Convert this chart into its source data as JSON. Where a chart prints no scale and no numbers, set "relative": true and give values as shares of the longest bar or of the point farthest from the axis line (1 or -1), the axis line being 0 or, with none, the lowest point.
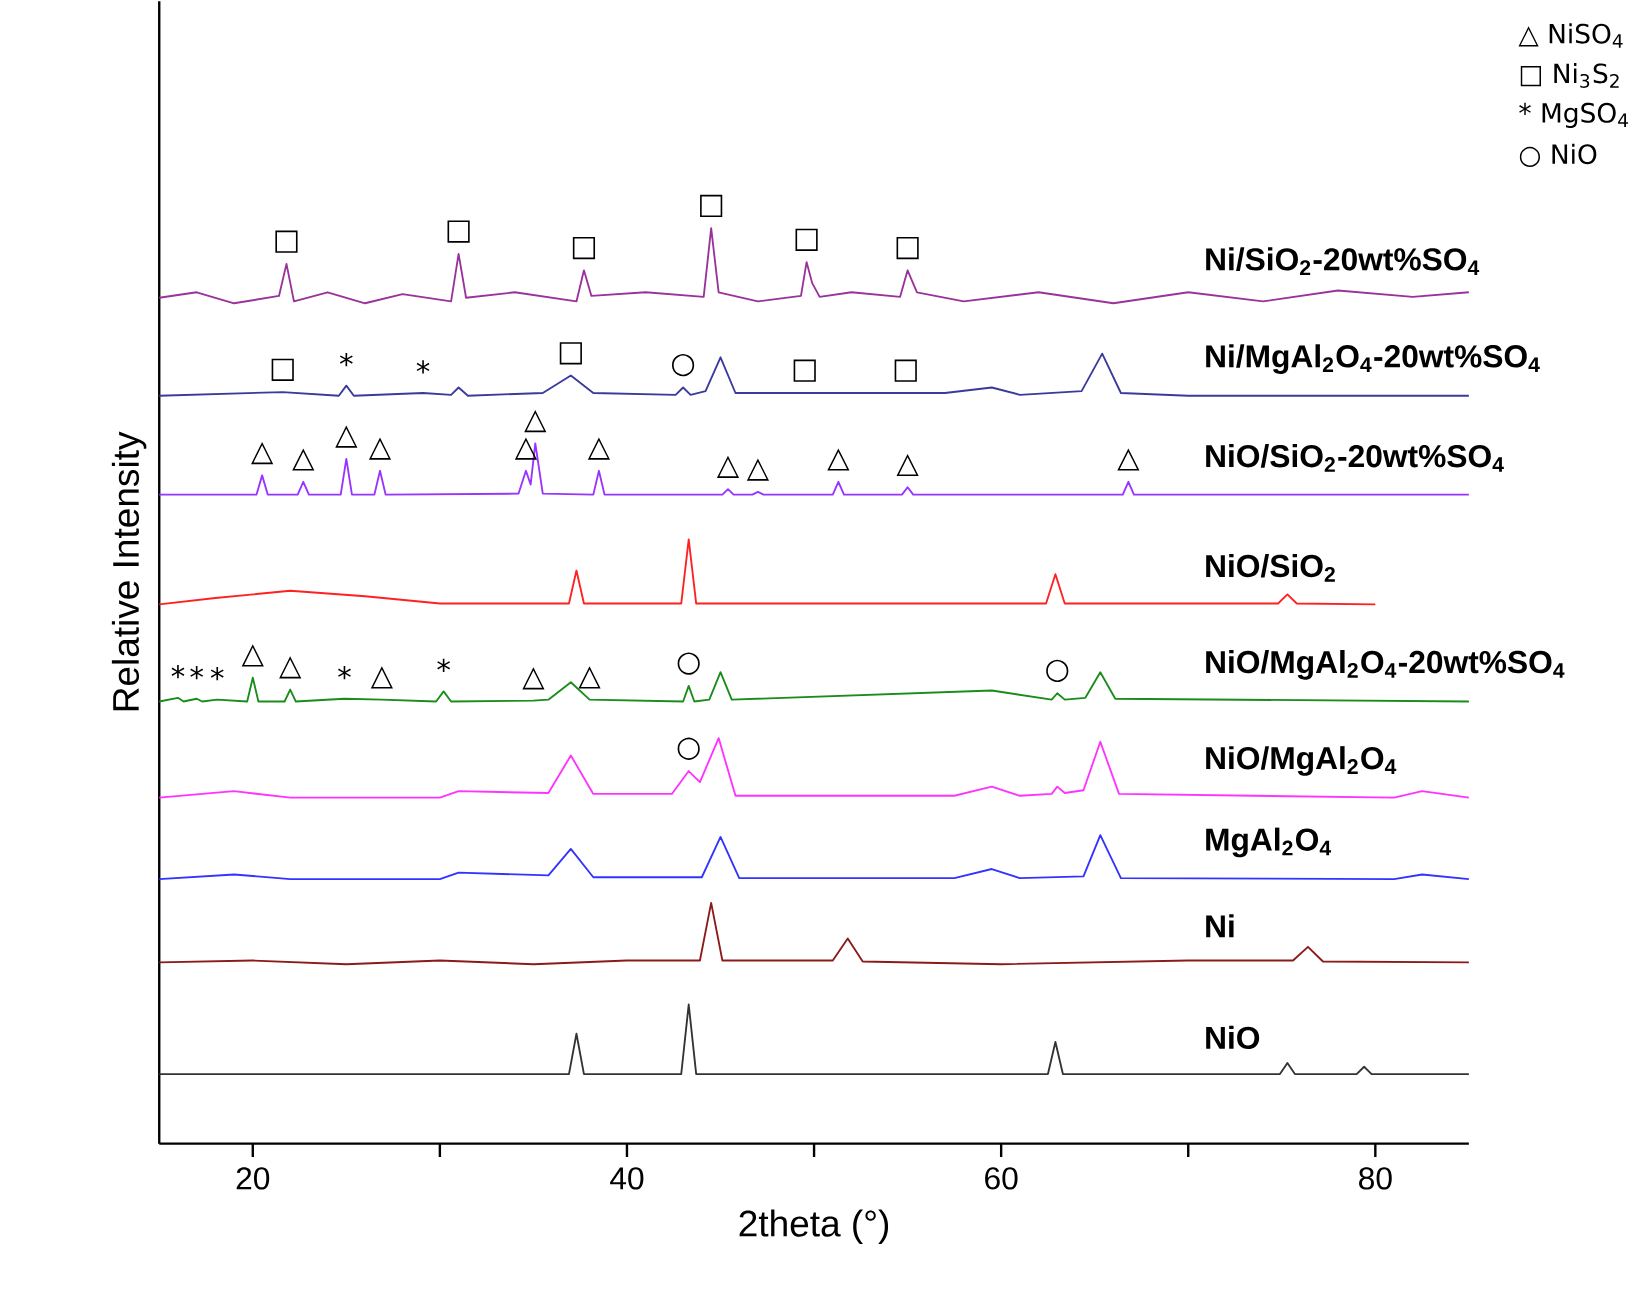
{
  "chart_data": {
    "type": "line",
    "relative": true,
    "xlabel": "2theta (°)",
    "ylabel": "Relative Intensity",
    "xlim": [
      15,
      85
    ],
    "xticks": [
      20,
      {
        "value": 30,
        "label": null
      },
      40,
      {
        "value": 50,
        "label": null
      },
      60,
      {
        "value": 70,
        "label": null
      },
      80
    ],
    "series": [
      {
        "name": "Ni/SiO$_{2}$-20wt%SO$_{4}$",
        "color": "#993399",
        "x": [
          15,
          17,
          19,
          21.4,
          21.8,
          22.2,
          24,
          26,
          28,
          30.6,
          31,
          31.4,
          34,
          37.3,
          37.7,
          38.1,
          41,
          44.1,
          44.5,
          44.9,
          47,
          49.3,
          49.6,
          49.9,
          50.3,
          52,
          54.6,
          55,
          55.5,
          58,
          62,
          66,
          70,
          74,
          78,
          82,
          85
        ],
        "values": [
          0.924,
          0.93,
          0.918,
          0.926,
          0.961,
          0.92,
          0.93,
          0.918,
          0.928,
          0.92,
          0.972,
          0.924,
          0.93,
          0.92,
          0.954,
          0.926,
          0.93,
          0.925,
          1.0,
          0.93,
          0.92,
          0.926,
          0.963,
          0.94,
          0.925,
          0.93,
          0.925,
          0.954,
          0.93,
          0.92,
          0.93,
          0.918,
          0.93,
          0.92,
          0.932,
          0.925,
          0.93
        ]
      },
      {
        "name": "Ni/MgAl$_{2}$O$_{4}$-20wt%SO$_{4}$",
        "color": "#3a3a9c",
        "x": [
          15,
          21.6,
          24.6,
          25,
          25.4,
          29.1,
          30.6,
          31,
          31.5,
          35.5,
          37,
          38.2,
          42.6,
          43,
          43.4,
          44.2,
          45,
          45.8,
          49.5,
          54.9,
          57,
          59.5,
          61,
          64.3,
          65.4,
          66.4,
          70,
          85
        ],
        "values": [
          0.817,
          0.821,
          0.817,
          0.828,
          0.817,
          0.82,
          0.818,
          0.826,
          0.817,
          0.82,
          0.839,
          0.82,
          0.818,
          0.826,
          0.818,
          0.822,
          0.859,
          0.82,
          0.82,
          0.82,
          0.82,
          0.826,
          0.818,
          0.822,
          0.863,
          0.82,
          0.817,
          0.817
        ]
      },
      {
        "name": "NiO/SiO$_{2}$-20wt%SO$_{4}$",
        "color": "#9933ff",
        "x": [
          15,
          20.2,
          20.5,
          20.8,
          22.4,
          22.7,
          23,
          24.7,
          25,
          25.3,
          26.5,
          26.8,
          27.1,
          34.2,
          34.6,
          34.85,
          35.1,
          35.5,
          38.2,
          38.5,
          38.8,
          45.1,
          45.4,
          45.7,
          46.7,
          47,
          47.3,
          51,
          51.3,
          51.6,
          54.7,
          55,
          55.3,
          66.5,
          66.8,
          67.1,
          85
        ],
        "values": [
          0.709,
          0.709,
          0.73,
          0.709,
          0.709,
          0.723,
          0.709,
          0.709,
          0.748,
          0.709,
          0.709,
          0.735,
          0.709,
          0.71,
          0.735,
          0.72,
          0.765,
          0.71,
          0.709,
          0.735,
          0.709,
          0.709,
          0.715,
          0.709,
          0.709,
          0.712,
          0.709,
          0.709,
          0.723,
          0.709,
          0.709,
          0.717,
          0.709,
          0.709,
          0.723,
          0.709,
          0.709
        ]
      },
      {
        "name": "NiO/SiO$_{2}$",
        "color": "#ff2020",
        "x": [
          15,
          18,
          22,
          26,
          30,
          36.9,
          37.3,
          37.7,
          42.9,
          43.3,
          43.7,
          62.4,
          62.9,
          63.4,
          74.8,
          75.3,
          75.8,
          80
        ],
        "values": [
          0.589,
          0.596,
          0.604,
          0.598,
          0.59,
          0.59,
          0.626,
          0.59,
          0.59,
          0.66,
          0.59,
          0.59,
          0.622,
          0.59,
          0.59,
          0.6,
          0.59,
          0.589
        ]
      },
      {
        "name": "NiO/MgAl$_{2}$O$_{4}$-20wt%SO$_{4}$",
        "color": "#1a8c1a",
        "x": [
          15,
          16,
          16.3,
          17,
          17.3,
          18.1,
          19.7,
          20,
          20.3,
          21.7,
          22,
          22.3,
          24.9,
          26.9,
          29.8,
          30.2,
          30.6,
          35,
          35.8,
          37,
          38,
          43,
          43.3,
          43.6,
          44.4,
          45,
          45.6,
          59.5,
          62.7,
          63,
          63.4,
          64.5,
          65.3,
          66.1,
          85
        ],
        "values": [
          0.483,
          0.487,
          0.483,
          0.486,
          0.483,
          0.485,
          0.483,
          0.509,
          0.483,
          0.483,
          0.496,
          0.483,
          0.486,
          0.485,
          0.483,
          0.494,
          0.483,
          0.484,
          0.485,
          0.504,
          0.485,
          0.483,
          0.5,
          0.483,
          0.485,
          0.515,
          0.485,
          0.495,
          0.485,
          0.492,
          0.485,
          0.487,
          0.515,
          0.486,
          0.483
        ]
      },
      {
        "name": "NiO/MgAl$_{2}$O$_{4}$",
        "color": "#ff33ff",
        "x": [
          15,
          19,
          22,
          30,
          31,
          35.8,
          37,
          38.2,
          42.4,
          43.3,
          43.9,
          44.9,
          45.8,
          57.5,
          59.5,
          61,
          62.7,
          63,
          63.4,
          64.4,
          65.3,
          66.3,
          81,
          82.5,
          85
        ],
        "values": [
          0.378,
          0.385,
          0.378,
          0.378,
          0.385,
          0.383,
          0.424,
          0.382,
          0.382,
          0.407,
          0.395,
          0.443,
          0.38,
          0.38,
          0.39,
          0.38,
          0.382,
          0.39,
          0.383,
          0.386,
          0.439,
          0.382,
          0.378,
          0.385,
          0.378
        ]
      },
      {
        "name": "MgAl$_{2}$O$_{4}$",
        "color": "#3333ff",
        "x": [
          15,
          19,
          22,
          30,
          31,
          35.8,
          37,
          38.2,
          44,
          45,
          46,
          57.5,
          59.5,
          61,
          64.4,
          65.3,
          66.4,
          81,
          82.5,
          85
        ],
        "values": [
          0.289,
          0.294,
          0.289,
          0.289,
          0.296,
          0.293,
          0.322,
          0.291,
          0.291,
          0.335,
          0.29,
          0.29,
          0.3,
          0.29,
          0.292,
          0.337,
          0.29,
          0.289,
          0.294,
          0.289
        ]
      },
      {
        "name": "Ni",
        "color": "#8b1a1a",
        "x": [
          15,
          20,
          25,
          30,
          35,
          40,
          43.9,
          44.5,
          45.1,
          51,
          51.8,
          52.6,
          60,
          70,
          75.6,
          76.4,
          77.2,
          85
        ],
        "values": [
          0.198,
          0.2,
          0.196,
          0.2,
          0.196,
          0.2,
          0.2,
          0.263,
          0.2,
          0.2,
          0.224,
          0.199,
          0.196,
          0.2,
          0.2,
          0.215,
          0.199,
          0.198
        ]
      },
      {
        "name": "NiO",
        "color": "#333333",
        "x": [
          15,
          36.9,
          37.3,
          37.7,
          42.9,
          43.3,
          43.7,
          62.5,
          62.9,
          63.3,
          74.9,
          75.3,
          75.7,
          79,
          79.4,
          79.8,
          85
        ],
        "values": [
          0.076,
          0.076,
          0.12,
          0.076,
          0.076,
          0.152,
          0.076,
          0.076,
          0.111,
          0.076,
          0.076,
          0.088,
          0.076,
          0.076,
          0.084,
          0.076,
          0.076
        ]
      }
    ],
    "annotations": [
      "△ NiSO$_{4}$",
      "□ Ni$_{3}$S$_{2}$",
      "* MgSO$_{4}$",
      "○ NiO",
      {
        "text": "□",
        "x": 21.8,
        "y": 0.961
      },
      {
        "text": "□",
        "x": 31,
        "y": 0.972
      },
      {
        "text": "□",
        "x": 37.7,
        "y": 0.954
      },
      {
        "text": "□",
        "x": 44.5,
        "y": 1.0
      },
      {
        "text": "□",
        "x": 49.6,
        "y": 0.963
      },
      {
        "text": "□",
        "x": 55,
        "y": 0.954
      },
      {
        "text": "□",
        "x": 21.6,
        "y": 0.821
      },
      {
        "text": "*",
        "x": 25,
        "y": 0.828
      },
      {
        "text": "*",
        "x": 29.1,
        "y": 0.82
      },
      {
        "text": "□",
        "x": 37,
        "y": 0.839
      },
      {
        "text": "○",
        "x": 43,
        "y": 0.826
      },
      {
        "text": "□",
        "x": 49.5,
        "y": 0.82
      },
      {
        "text": "□",
        "x": 54.9,
        "y": 0.82
      },
      {
        "text": "△",
        "x": 20.5,
        "y": 0.73
      },
      {
        "text": "△",
        "x": 22.7,
        "y": 0.723
      },
      {
        "text": "△",
        "x": 25,
        "y": 0.748
      },
      {
        "text": "△",
        "x": 26.8,
        "y": 0.735
      },
      {
        "text": "△",
        "x": 34.6,
        "y": 0.735
      },
      {
        "text": "△",
        "x": 35.1,
        "y": 0.765
      },
      {
        "text": "△",
        "x": 38.5,
        "y": 0.735
      },
      {
        "text": "△",
        "x": 45.4,
        "y": 0.715
      },
      {
        "text": "△",
        "x": 47,
        "y": 0.712
      },
      {
        "text": "△",
        "x": 51.3,
        "y": 0.723
      },
      {
        "text": "△",
        "x": 55,
        "y": 0.717
      },
      {
        "text": "△",
        "x": 66.8,
        "y": 0.723
      },
      {
        "text": "*",
        "x": 16,
        "y": 0.487
      },
      {
        "text": "*",
        "x": 17,
        "y": 0.486
      },
      {
        "text": "*",
        "x": 18.1,
        "y": 0.485
      },
      {
        "text": "△",
        "x": 20,
        "y": 0.509
      },
      {
        "text": "△",
        "x": 22,
        "y": 0.496
      },
      {
        "text": "*",
        "x": 24.9,
        "y": 0.486
      },
      {
        "text": "△",
        "x": 26.9,
        "y": 0.485
      },
      {
        "text": "*",
        "x": 30.2,
        "y": 0.494
      },
      {
        "text": "△",
        "x": 35,
        "y": 0.484
      },
      {
        "text": "△",
        "x": 38,
        "y": 0.485
      },
      {
        "text": "○",
        "x": 43.3,
        "y": 0.5
      },
      {
        "text": "○",
        "x": 63,
        "y": 0.492
      },
      {
        "text": "○",
        "x": 43.3,
        "y": 0.407
      }
    ]
  }
}
